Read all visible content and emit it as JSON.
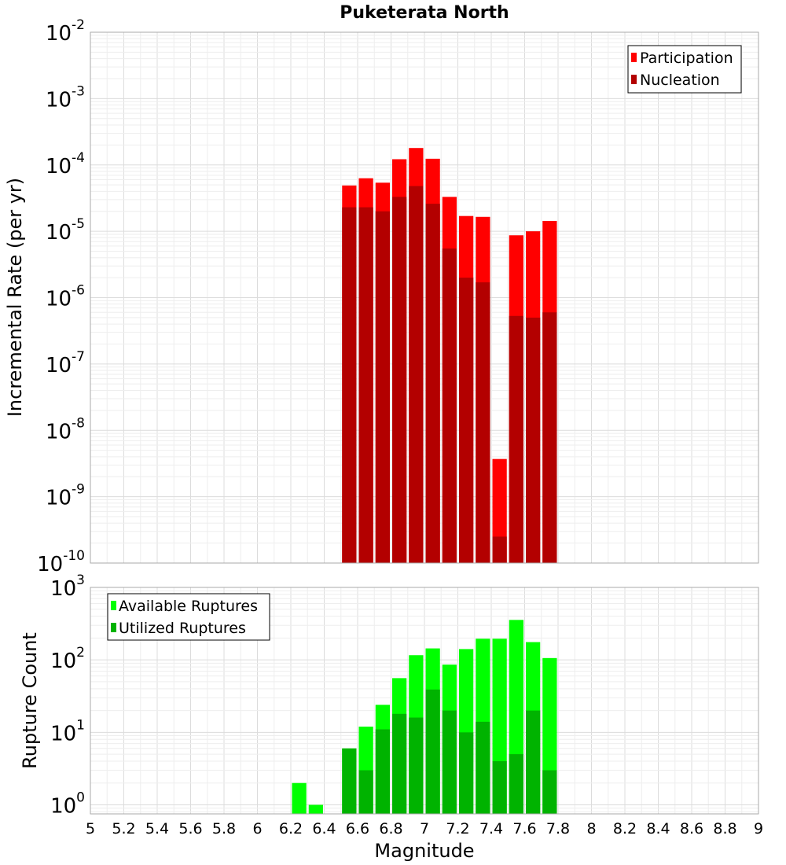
{
  "title": "Puketerata North",
  "chart_data": [
    {
      "type": "bar",
      "ylabel": "Incremental Rate (per yr)",
      "xlabel": "",
      "y_scale": "log",
      "ylim": [
        1e-10,
        0.01
      ],
      "xlim": [
        5,
        9
      ],
      "x": [
        6.55,
        6.65,
        6.75,
        6.85,
        6.95,
        7.05,
        7.15,
        7.25,
        7.35,
        7.45,
        7.55,
        7.65,
        7.75
      ],
      "series": [
        {
          "name": "Participation",
          "color": "#ff0000",
          "values": [
            4.9e-05,
            6.3e-05,
            5.4e-05,
            0.000122,
            0.00018,
            0.000124,
            3.3e-05,
            1.7e-05,
            1.65e-05,
            3.7e-09,
            8.7e-06,
            1e-05,
            1.43e-05
          ]
        },
        {
          "name": "Nucleation",
          "color": "#b30000",
          "values": [
            2.3e-05,
            2.3e-05,
            2e-05,
            3.3e-05,
            4.8e-05,
            2.6e-05,
            5.5e-06,
            2e-06,
            1.7e-06,
            2.5e-10,
            5.3e-07,
            5e-07,
            6e-07
          ]
        }
      ],
      "legend": "top-right",
      "grid": true
    },
    {
      "type": "bar",
      "ylabel": "Rupture Count",
      "xlabel": "Magnitude",
      "y_scale": "log",
      "ylim": [
        0.75,
        1000
      ],
      "xlim": [
        5,
        9
      ],
      "x": [
        6.25,
        6.35,
        6.55,
        6.65,
        6.75,
        6.85,
        6.95,
        7.05,
        7.15,
        7.25,
        7.35,
        7.45,
        7.55,
        7.65,
        7.75
      ],
      "series": [
        {
          "name": "Available Ruptures",
          "color": "#00ff00",
          "values": [
            2,
            1,
            6,
            12,
            24,
            56,
            116,
            144,
            86,
            141,
            196,
            196,
            356,
            176,
            106
          ]
        },
        {
          "name": "Utilized Ruptures",
          "color": "#00b300",
          "values": [
            0,
            0,
            6,
            3,
            11,
            18,
            16,
            39,
            20,
            10,
            14,
            4,
            5,
            20,
            3
          ]
        }
      ],
      "legend": "top-left",
      "grid": true
    }
  ],
  "y_tick_labels_top": [
    {
      "base": "10",
      "exp": "-10",
      "value": 1e-10
    },
    {
      "base": "10",
      "exp": "-9",
      "value": 1e-09
    },
    {
      "base": "10",
      "exp": "-8",
      "value": 1e-08
    },
    {
      "base": "10",
      "exp": "-7",
      "value": 1e-07
    },
    {
      "base": "10",
      "exp": "-6",
      "value": 1e-06
    },
    {
      "base": "10",
      "exp": "-5",
      "value": 1e-05
    },
    {
      "base": "10",
      "exp": "-4",
      "value": 0.0001
    },
    {
      "base": "10",
      "exp": "-3",
      "value": 0.001
    },
    {
      "base": "10",
      "exp": "-2",
      "value": 0.01
    }
  ],
  "y_tick_labels_bottom": [
    {
      "base": "10",
      "exp": "0",
      "value": 1
    },
    {
      "base": "10",
      "exp": "1",
      "value": 10
    },
    {
      "base": "10",
      "exp": "2",
      "value": 100
    },
    {
      "base": "10",
      "exp": "3",
      "value": 1000
    }
  ],
  "x_tick_labels": [
    "5",
    "5.2",
    "5.4",
    "5.6",
    "5.8",
    "6",
    "6.2",
    "6.4",
    "6.6",
    "6.8",
    "7",
    "7.2",
    "7.4",
    "7.6",
    "7.8",
    "8",
    "8.2",
    "8.4",
    "8.6",
    "8.8",
    "9"
  ],
  "x_tick_values": [
    5,
    5.2,
    5.4,
    5.6,
    5.8,
    6,
    6.2,
    6.4,
    6.6,
    6.8,
    7,
    7.2,
    7.4,
    7.6,
    7.8,
    8,
    8.2,
    8.4,
    8.6,
    8.8,
    9
  ]
}
